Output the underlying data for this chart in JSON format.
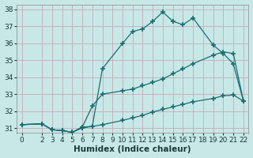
{
  "xlabel": "Humidex (Indice chaleur)",
  "bg_color": "#c8e8e8",
  "grid_color": "#c8a8b8",
  "line_color": "#1a6e6e",
  "xlim": [
    -0.5,
    22.5
  ],
  "ylim": [
    30.7,
    38.3
  ],
  "xticks": [
    0,
    2,
    3,
    4,
    5,
    6,
    7,
    8,
    9,
    10,
    11,
    12,
    13,
    14,
    15,
    16,
    17,
    18,
    19,
    20,
    21,
    22
  ],
  "yticks": [
    31,
    32,
    33,
    34,
    35,
    36,
    37,
    38
  ],
  "line1_x": [
    0,
    2,
    3,
    4,
    5,
    6,
    7,
    8,
    10,
    11,
    12,
    13,
    14,
    15,
    16,
    17,
    19,
    20,
    21,
    22
  ],
  "line1_y": [
    31.2,
    31.25,
    30.9,
    30.85,
    30.75,
    31.0,
    31.1,
    34.5,
    36.0,
    36.7,
    36.85,
    37.3,
    37.85,
    37.3,
    37.1,
    37.5,
    35.9,
    35.4,
    34.8,
    32.6
  ],
  "line2_x": [
    0,
    2,
    3,
    4,
    5,
    6,
    7,
    8,
    10,
    11,
    12,
    13,
    14,
    15,
    16,
    17,
    19,
    20,
    21,
    22
  ],
  "line2_y": [
    31.2,
    31.25,
    30.9,
    30.85,
    30.75,
    31.05,
    32.3,
    33.0,
    33.2,
    33.3,
    33.5,
    33.7,
    33.9,
    34.2,
    34.5,
    34.8,
    35.3,
    35.5,
    35.4,
    32.6
  ],
  "line3_x": [
    0,
    2,
    3,
    4,
    5,
    6,
    7,
    8,
    10,
    11,
    12,
    13,
    14,
    15,
    16,
    17,
    19,
    20,
    21,
    22
  ],
  "line3_y": [
    31.2,
    31.25,
    30.9,
    30.85,
    30.75,
    31.05,
    31.1,
    31.2,
    31.45,
    31.6,
    31.75,
    31.95,
    32.1,
    32.25,
    32.4,
    32.55,
    32.75,
    32.9,
    32.95,
    32.6
  ],
  "marker": "+",
  "markersize": 4,
  "markeredgewidth": 1.2,
  "linewidth": 0.9,
  "font_size": 7,
  "xlabel_fontsize": 7.5,
  "tick_fontsize": 6.5
}
